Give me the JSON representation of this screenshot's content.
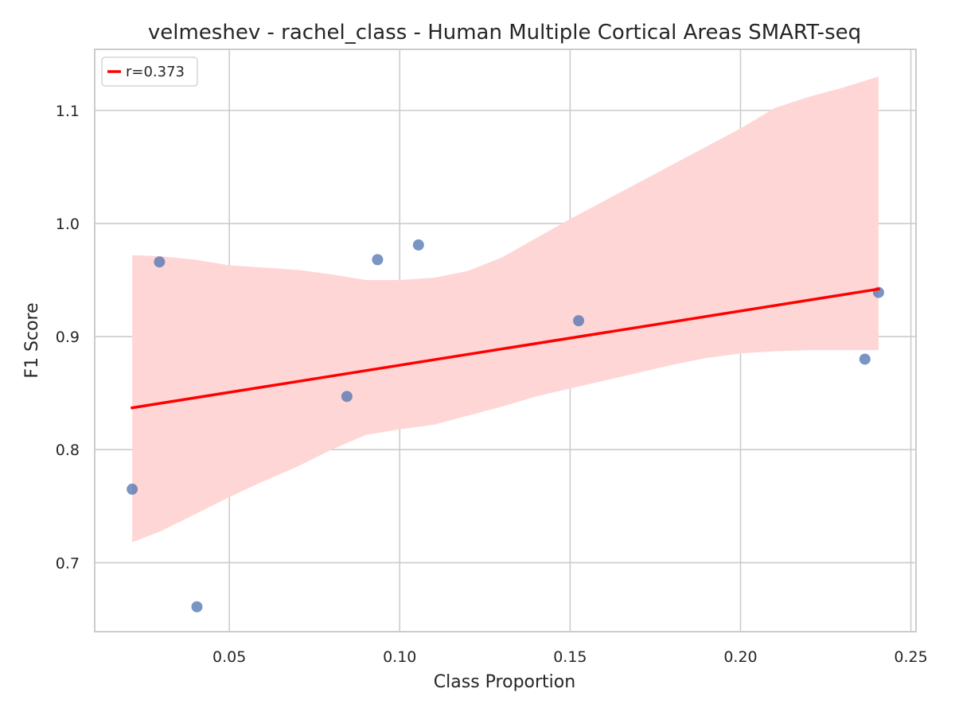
{
  "chart_data": {
    "type": "scatter",
    "title": "velmeshev - rachel_class - Human Multiple Cortical Areas SMART-seq",
    "xlabel": "Class Proportion",
    "ylabel": "F1 Score",
    "xlim": [
      0.0105,
      0.2515
    ],
    "ylim": [
      0.639,
      1.154
    ],
    "xticks": [
      0.05,
      0.1,
      0.15,
      0.2,
      0.25
    ],
    "xtick_labels": [
      "0.05",
      "0.10",
      "0.15",
      "0.20",
      "0.25"
    ],
    "yticks": [
      0.7,
      0.8,
      0.9,
      1.0,
      1.1
    ],
    "ytick_labels": [
      "0.7",
      "0.8",
      "0.9",
      "1.0",
      "1.1"
    ],
    "grid": true,
    "legend": {
      "label": "r=0.373",
      "placement": "top-left"
    },
    "points": [
      {
        "x": 0.0215,
        "y": 0.765
      },
      {
        "x": 0.0295,
        "y": 0.966
      },
      {
        "x": 0.0405,
        "y": 0.661
      },
      {
        "x": 0.0845,
        "y": 0.847
      },
      {
        "x": 0.0935,
        "y": 0.968
      },
      {
        "x": 0.1055,
        "y": 0.981
      },
      {
        "x": 0.1525,
        "y": 0.914
      },
      {
        "x": 0.2365,
        "y": 0.88
      },
      {
        "x": 0.2405,
        "y": 0.939
      }
    ],
    "regression_line": {
      "x": [
        0.0215,
        0.2405
      ],
      "y": [
        0.837,
        0.942
      ]
    },
    "confidence_band": {
      "x": [
        0.0215,
        0.03,
        0.04,
        0.05,
        0.06,
        0.07,
        0.08,
        0.09,
        0.1,
        0.11,
        0.12,
        0.13,
        0.14,
        0.15,
        0.16,
        0.17,
        0.18,
        0.19,
        0.2,
        0.21,
        0.22,
        0.23,
        0.2405
      ],
      "upper": [
        0.972,
        0.971,
        0.968,
        0.963,
        0.961,
        0.959,
        0.955,
        0.95,
        0.95,
        0.952,
        0.958,
        0.97,
        0.987,
        1.004,
        1.02,
        1.036,
        1.052,
        1.068,
        1.084,
        1.102,
        1.112,
        1.12,
        1.13
      ],
      "lower": [
        0.718,
        0.728,
        0.743,
        0.758,
        0.772,
        0.785,
        0.8,
        0.813,
        0.818,
        0.822,
        0.83,
        0.838,
        0.847,
        0.854,
        0.861,
        0.868,
        0.875,
        0.881,
        0.885,
        0.887,
        0.888,
        0.888,
        0.888
      ]
    },
    "colors": {
      "points": "#4c72b0",
      "line": "#ff0000",
      "band": "#ffd6d6",
      "grid": "#cccccc",
      "spine": "#cccccc"
    }
  }
}
